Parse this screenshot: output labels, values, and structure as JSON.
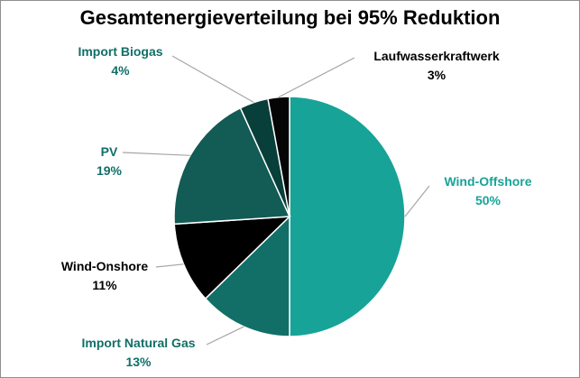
{
  "chart_data": {
    "type": "pie",
    "title": "Gesamtenergieverteilung bei 95% Reduktion",
    "categories": [
      "Wind-Offshore",
      "Import Natural Gas",
      "Wind-Onshore",
      "PV",
      "Import Biogas",
      "Laufwasserkraftwerk"
    ],
    "values": [
      50,
      13,
      11,
      19,
      4,
      3
    ],
    "value_labels": [
      "50%",
      "13%",
      "11%",
      "19%",
      "4%",
      "3%"
    ],
    "colors": [
      "#17a398",
      "#116f67",
      "#000000",
      "#135b55",
      "#083f3a",
      "#050505"
    ],
    "label_colors": [
      "#17a398",
      "#116f67",
      "#000000",
      "#116f67",
      "#116f67",
      "#000000"
    ],
    "legend": "none",
    "start_angle": "12 o'clock, clockwise"
  }
}
